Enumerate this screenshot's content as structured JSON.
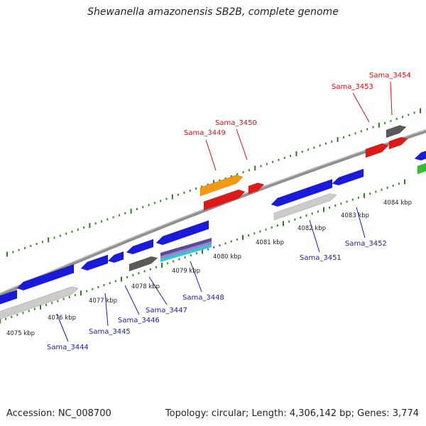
{
  "title": "Shewanella amazonensis SB2B, complete genome",
  "accession": "Accession: NC_008700",
  "summary": "Topology: circular; Length: 4,306,142 bp; Genes: 3,774",
  "colors": {
    "backbone": "#909090",
    "tick_major": "#2e7d1e",
    "tick_minor": "#3a8a28",
    "forward_label": "#cc1111",
    "reverse_label": "#1a1aa8",
    "blue_gene": "#1a1adc",
    "red_gene": "#e01818",
    "orange_gene": "#f59a10",
    "gray_gene": "#5a5a5a",
    "green_gene": "#30c030",
    "light_gene": "#cccccc",
    "purple_gene": "#5a4a9a",
    "cyan_gene": "#30c8d0"
  },
  "scale_labels": [
    {
      "text": "4075 kbp"
    },
    {
      "text": "4076 kbp"
    },
    {
      "text": "4077 kbp"
    },
    {
      "text": "4078 kbp"
    },
    {
      "text": "4079 kbp"
    },
    {
      "text": "4080 kbp"
    },
    {
      "text": "4081 kbp"
    },
    {
      "text": "4082 kbp"
    },
    {
      "text": "4083 kbp"
    },
    {
      "text": "4084 kbp"
    }
  ],
  "forward_genes": [
    {
      "label": "Sama_3449",
      "color": "orange_gene"
    },
    {
      "label": "Sama_3450",
      "color": "red_gene"
    },
    {
      "label": "Sama_3453",
      "color": "red_gene"
    },
    {
      "label": "Sama_3454",
      "color": "gray_gene"
    }
  ],
  "reverse_genes": [
    {
      "label": "Sama_3444",
      "color": "light_gene"
    },
    {
      "label": "Sama_3445",
      "color": "blue_gene"
    },
    {
      "label": "Sama_3446",
      "color": "blue_gene"
    },
    {
      "label": "Sama_3447",
      "color": "gray_gene"
    },
    {
      "label": "Sama_3448",
      "color": "purple_gene"
    },
    {
      "label": "Sama_3451",
      "color": "light_gene"
    },
    {
      "label": "Sama_3452",
      "color": "blue_gene"
    }
  ]
}
